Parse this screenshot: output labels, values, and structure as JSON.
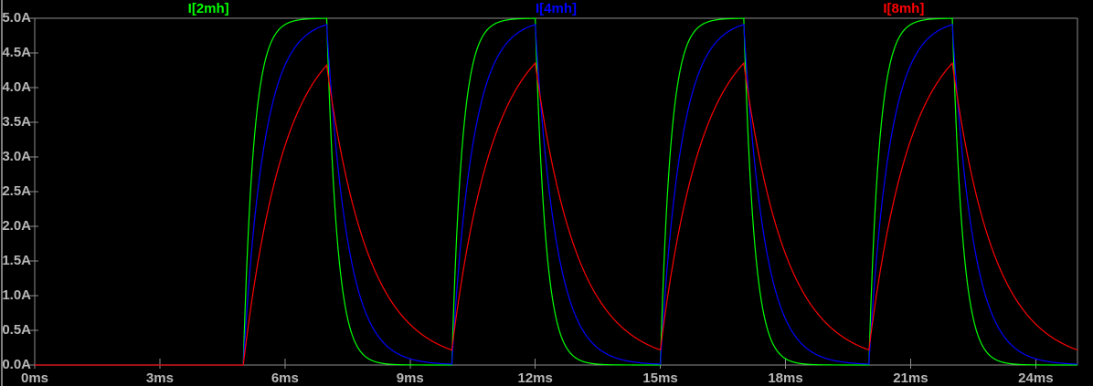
{
  "window": {
    "background_color": "#000000",
    "pane_border_color": "#7e7e7e"
  },
  "colors": {
    "text": "#b8b8b8",
    "axis": "#8e8e8e"
  },
  "chart_data": {
    "type": "line",
    "title": "",
    "description": "Inductor charge/discharge current waveforms for three inductance values under a repeating voltage pulse",
    "grid": false,
    "legend_position": "top, one label centered over each third of the plot",
    "x_axis": {
      "unit": "ms",
      "min": 0,
      "max": 25,
      "tick_step": 3,
      "tick_labels": [
        "0ms",
        "3ms",
        "6ms",
        "9ms",
        "12ms",
        "15ms",
        "18ms",
        "21ms",
        "24ms"
      ]
    },
    "y_axis": {
      "unit": "A",
      "min": 0,
      "max": 5,
      "tick_step": 0.5,
      "tick_labels": [
        "0.0A",
        "0.5A",
        "1.0A",
        "1.5A",
        "2.0A",
        "2.5A",
        "3.0A",
        "3.5A",
        "4.0A",
        "4.5A",
        "5.0A"
      ]
    },
    "series": [
      {
        "name": "I[2mh]",
        "color": "#00ff00",
        "inductance_mH": 2,
        "time_constant_ms": 0.25,
        "peak_A": 5.0
      },
      {
        "name": "I[4mh]",
        "color": "#0000ff",
        "inductance_mH": 4,
        "time_constant_ms": 0.5,
        "peak_A": 4.91
      },
      {
        "name": "I[8mh]",
        "color": "#ff0000",
        "inductance_mH": 8,
        "time_constant_ms": 1.0,
        "peak_A": 4.35
      }
    ],
    "waveform_model": {
      "steady_state_A": 5,
      "first_pulse_start_ms": 5,
      "on_time_ms": 2,
      "period_ms": 5,
      "num_pulses": 4,
      "rise_times_ms": [
        5,
        10,
        15,
        20
      ],
      "fall_times_ms": [
        7,
        12,
        17,
        22
      ],
      "value_before_first_pulse_A": 0
    }
  }
}
